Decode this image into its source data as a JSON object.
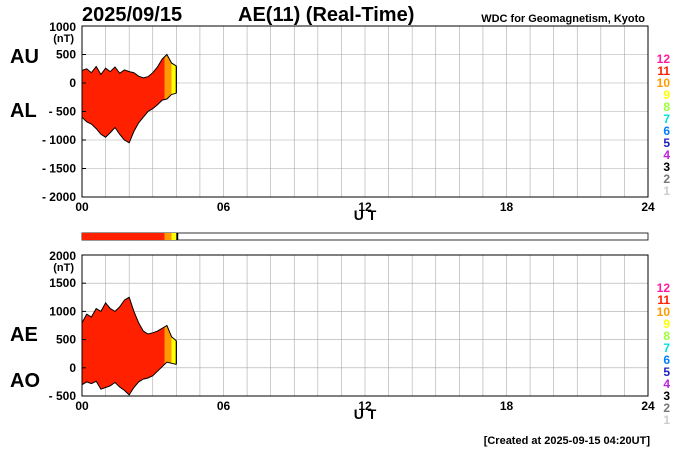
{
  "header": {
    "date": "2025/09/15",
    "title": "AE(11) (Real-Time)",
    "source": "WDC for Geomagnetism, Kyoto"
  },
  "footer": {
    "created": "[Created at 2025-09-15 04:20UT]"
  },
  "legend": {
    "labels": [
      "12",
      "11",
      "10",
      "9",
      "8",
      "7",
      "6",
      "5",
      "4",
      "3",
      "2",
      "1"
    ],
    "colors": [
      "#ff1aa0",
      "#ff2000",
      "#ff9900",
      "#ffff00",
      "#99ff33",
      "#00e0e0",
      "#0080ff",
      "#2020c0",
      "#c020e0",
      "#000000",
      "#777777",
      "#cccccc"
    ]
  },
  "xaxis": {
    "label": "U T",
    "ticks": [
      "00",
      "06",
      "12",
      "18",
      "24"
    ],
    "range": [
      0,
      24
    ]
  },
  "coverage": {
    "segments": [
      {
        "from": 0.0,
        "to": 3.5,
        "color": "#ff2000"
      },
      {
        "from": 3.5,
        "to": 3.8,
        "color": "#ff9900"
      },
      {
        "from": 3.8,
        "to": 4.0,
        "color": "#ffff00"
      },
      {
        "from": 4.0,
        "to": 4.08,
        "color": "#000000"
      }
    ]
  },
  "chart_data": [
    {
      "type": "area",
      "upper_label": "AU",
      "lower_label": "AL",
      "unit": "(nT)",
      "ylim": [
        -2000,
        1000
      ],
      "yticks": [
        "1000",
        "500",
        "0",
        "- 500",
        "- 1000",
        "- 1500",
        "- 2000"
      ],
      "ytick_values": [
        1000,
        500,
        0,
        -500,
        -1000,
        -1500,
        -2000
      ],
      "x": [
        0.0,
        0.2,
        0.4,
        0.6,
        0.8,
        1.0,
        1.2,
        1.4,
        1.6,
        1.8,
        2.0,
        2.2,
        2.4,
        2.6,
        2.8,
        3.0,
        3.2,
        3.4,
        3.6,
        3.8,
        4.0
      ],
      "series": [
        {
          "values": [
            220,
            250,
            180,
            290,
            150,
            260,
            200,
            280,
            170,
            230,
            200,
            180,
            120,
            90,
            110,
            180,
            280,
            420,
            500,
            350,
            300
          ]
        },
        {
          "values": [
            -600,
            -680,
            -720,
            -800,
            -900,
            -950,
            -870,
            -780,
            -900,
            -1000,
            -1050,
            -850,
            -700,
            -600,
            -500,
            -450,
            -380,
            -300,
            -280,
            -200,
            -180
          ]
        }
      ],
      "fill_segments": [
        {
          "from": 0.0,
          "to": 3.5,
          "color": "#ff2000"
        },
        {
          "from": 3.5,
          "to": 3.8,
          "color": "#ff9900"
        },
        {
          "from": 3.8,
          "to": 4.0,
          "color": "#ffff00"
        }
      ]
    },
    {
      "type": "area",
      "upper_label": "AE",
      "lower_label": "AO",
      "unit": "(nT)",
      "ylim": [
        -500,
        2000
      ],
      "yticks": [
        "2000",
        "1500",
        "1000",
        "500",
        "0",
        "- 500"
      ],
      "ytick_values": [
        2000,
        1500,
        1000,
        500,
        0,
        -500
      ],
      "x": [
        0.0,
        0.2,
        0.4,
        0.6,
        0.8,
        1.0,
        1.2,
        1.4,
        1.6,
        1.8,
        2.0,
        2.2,
        2.4,
        2.6,
        2.8,
        3.0,
        3.2,
        3.4,
        3.6,
        3.8,
        4.0
      ],
      "series": [
        {
          "values": [
            800,
            950,
            900,
            1050,
            1000,
            1150,
            1050,
            1000,
            1080,
            1200,
            1250,
            1000,
            800,
            650,
            600,
            620,
            650,
            700,
            750,
            550,
            480
          ]
        },
        {
          "values": [
            -300,
            -250,
            -280,
            -240,
            -380,
            -350,
            -320,
            -260,
            -340,
            -400,
            -480,
            -350,
            -250,
            -200,
            -180,
            -140,
            -60,
            20,
            100,
            80,
            60
          ]
        }
      ],
      "fill_segments": [
        {
          "from": 0.0,
          "to": 3.5,
          "color": "#ff2000"
        },
        {
          "from": 3.5,
          "to": 3.8,
          "color": "#ff9900"
        },
        {
          "from": 3.8,
          "to": 4.0,
          "color": "#ffff00"
        }
      ]
    }
  ]
}
